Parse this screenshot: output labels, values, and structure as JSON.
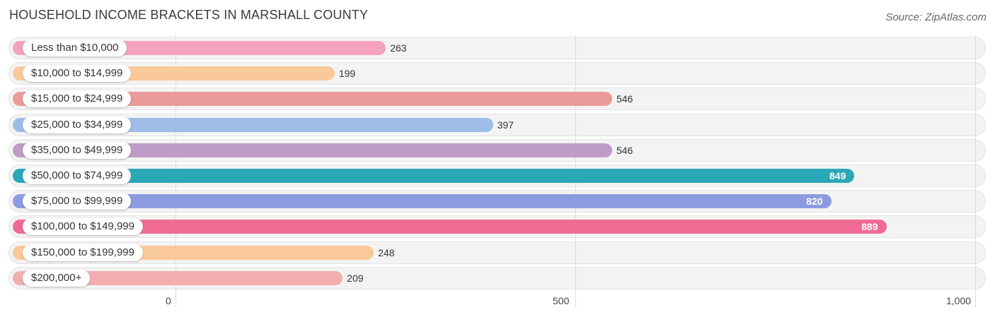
{
  "header": {
    "title": "HOUSEHOLD INCOME BRACKETS IN MARSHALL COUNTY",
    "source": "Source: ZipAtlas.com"
  },
  "chart_data": {
    "type": "bar",
    "orientation": "horizontal",
    "title": "HOUSEHOLD INCOME BRACKETS IN MARSHALL COUNTY",
    "categories": [
      "Less than $10,000",
      "$10,000 to $14,999",
      "$15,000 to $24,999",
      "$25,000 to $34,999",
      "$35,000 to $49,999",
      "$50,000 to $74,999",
      "$75,000 to $99,999",
      "$100,000 to $149,999",
      "$150,000 to $199,999",
      "$200,000+"
    ],
    "values": [
      263,
      199,
      546,
      397,
      546,
      849,
      820,
      889,
      248,
      209
    ],
    "value_labels": [
      "263",
      "199",
      "546",
      "397",
      "546",
      "849",
      "820",
      "889",
      "248",
      "209"
    ],
    "colors": [
      "#f4a3bf",
      "#f9c99a",
      "#ea9a98",
      "#9dbde6",
      "#bf9cc6",
      "#2aa8b8",
      "#8c9be0",
      "#f06b94",
      "#f9c99a",
      "#f2aeae"
    ],
    "xlim": [
      0,
      1000
    ],
    "xticks": [
      0,
      500,
      1000
    ],
    "xtick_labels": [
      "0",
      "500",
      "1,000"
    ],
    "xlabel": "",
    "ylabel": "",
    "grid": true,
    "legend": "none"
  }
}
